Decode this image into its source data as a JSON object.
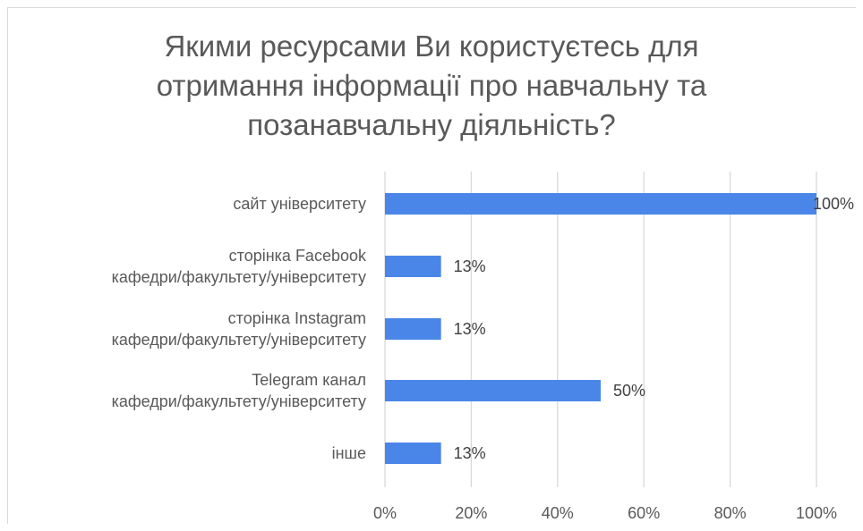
{
  "chart_data": {
    "type": "bar",
    "orientation": "horizontal",
    "title": "Якими ресурсами Ви користуєтесь для\nотримання інформації про навчальну та\nпозанавчальну діяльність?",
    "categories": [
      [
        "сайт університету"
      ],
      [
        "сторінка Facebook",
        "кафедри/факультету/університету"
      ],
      [
        "сторінка Instagram",
        "кафедри/факультету/університету"
      ],
      [
        "Telegram канал",
        "кафедри/факультету/університету"
      ],
      [
        "інше"
      ]
    ],
    "values": [
      100,
      13,
      13,
      50,
      13
    ],
    "data_labels": [
      "100%",
      "13%",
      "13%",
      "50%",
      "13%"
    ],
    "xlim": [
      0,
      100
    ],
    "x_ticks": [
      0,
      20,
      40,
      60,
      80,
      100
    ],
    "x_tick_labels": [
      "0%",
      "20%",
      "40%",
      "60%",
      "80%",
      "100%"
    ],
    "grid": true,
    "bar_color": "#4a86e8",
    "grid_color": "#d9d9d9"
  }
}
